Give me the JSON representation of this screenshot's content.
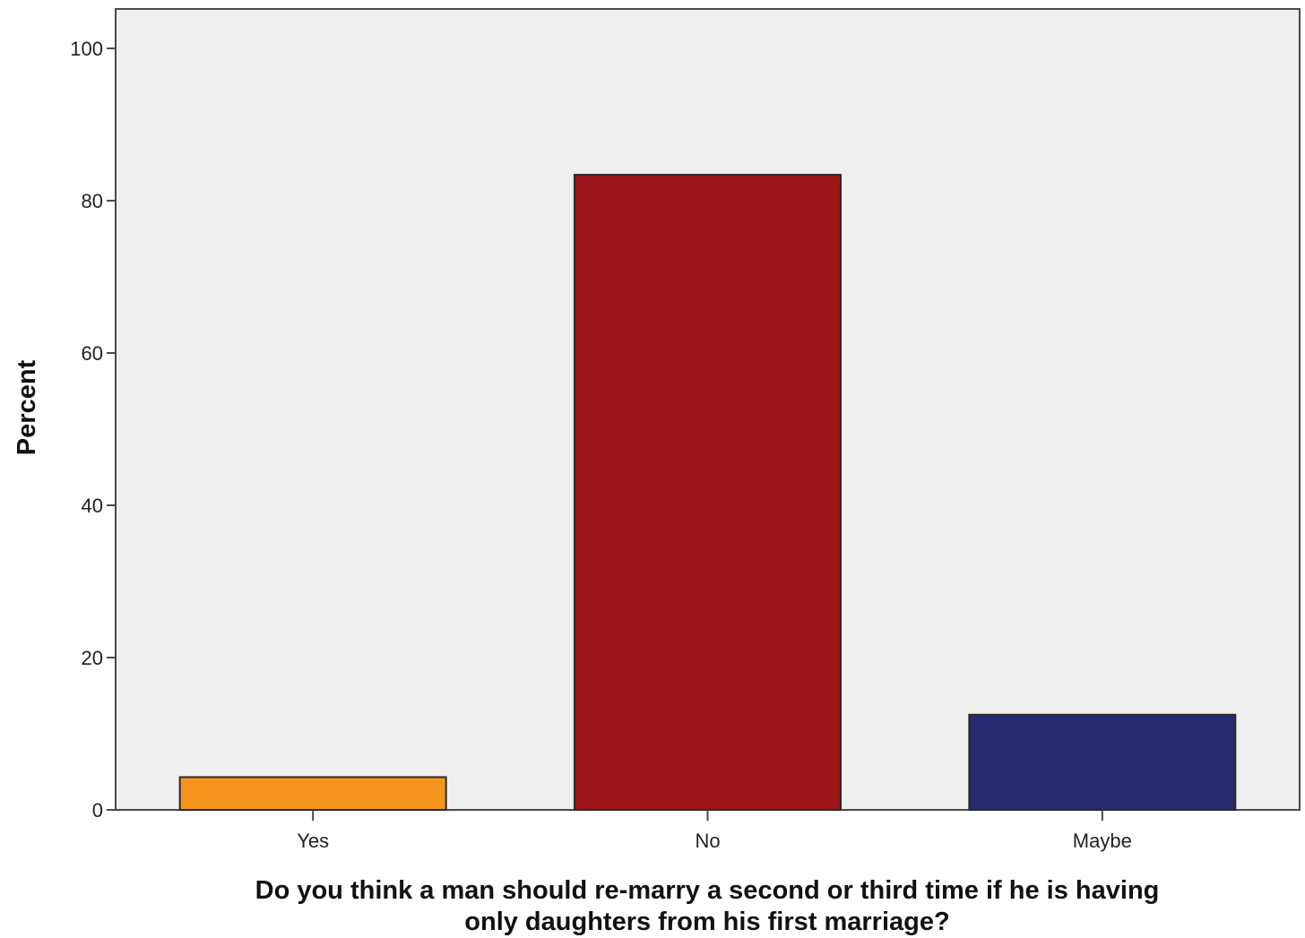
{
  "chart_data": {
    "type": "bar",
    "title": "",
    "xlabel_lines": [
      "Do you think a man should re-marry a second or third time if he is having",
      "only daughters from his first marriage?"
    ],
    "ylabel": "Percent",
    "categories": [
      "Yes",
      "No",
      "Maybe"
    ],
    "values": [
      4.3,
      83.4,
      12.5
    ],
    "bar_colors": [
      "#F7951E",
      "#9C161A",
      "#272A6E"
    ],
    "ylim": [
      0,
      105
    ],
    "yticks": [
      0,
      20,
      40,
      60,
      80,
      100
    ],
    "plot_background": "#EFEFEF",
    "grid": false,
    "legend": "none"
  }
}
